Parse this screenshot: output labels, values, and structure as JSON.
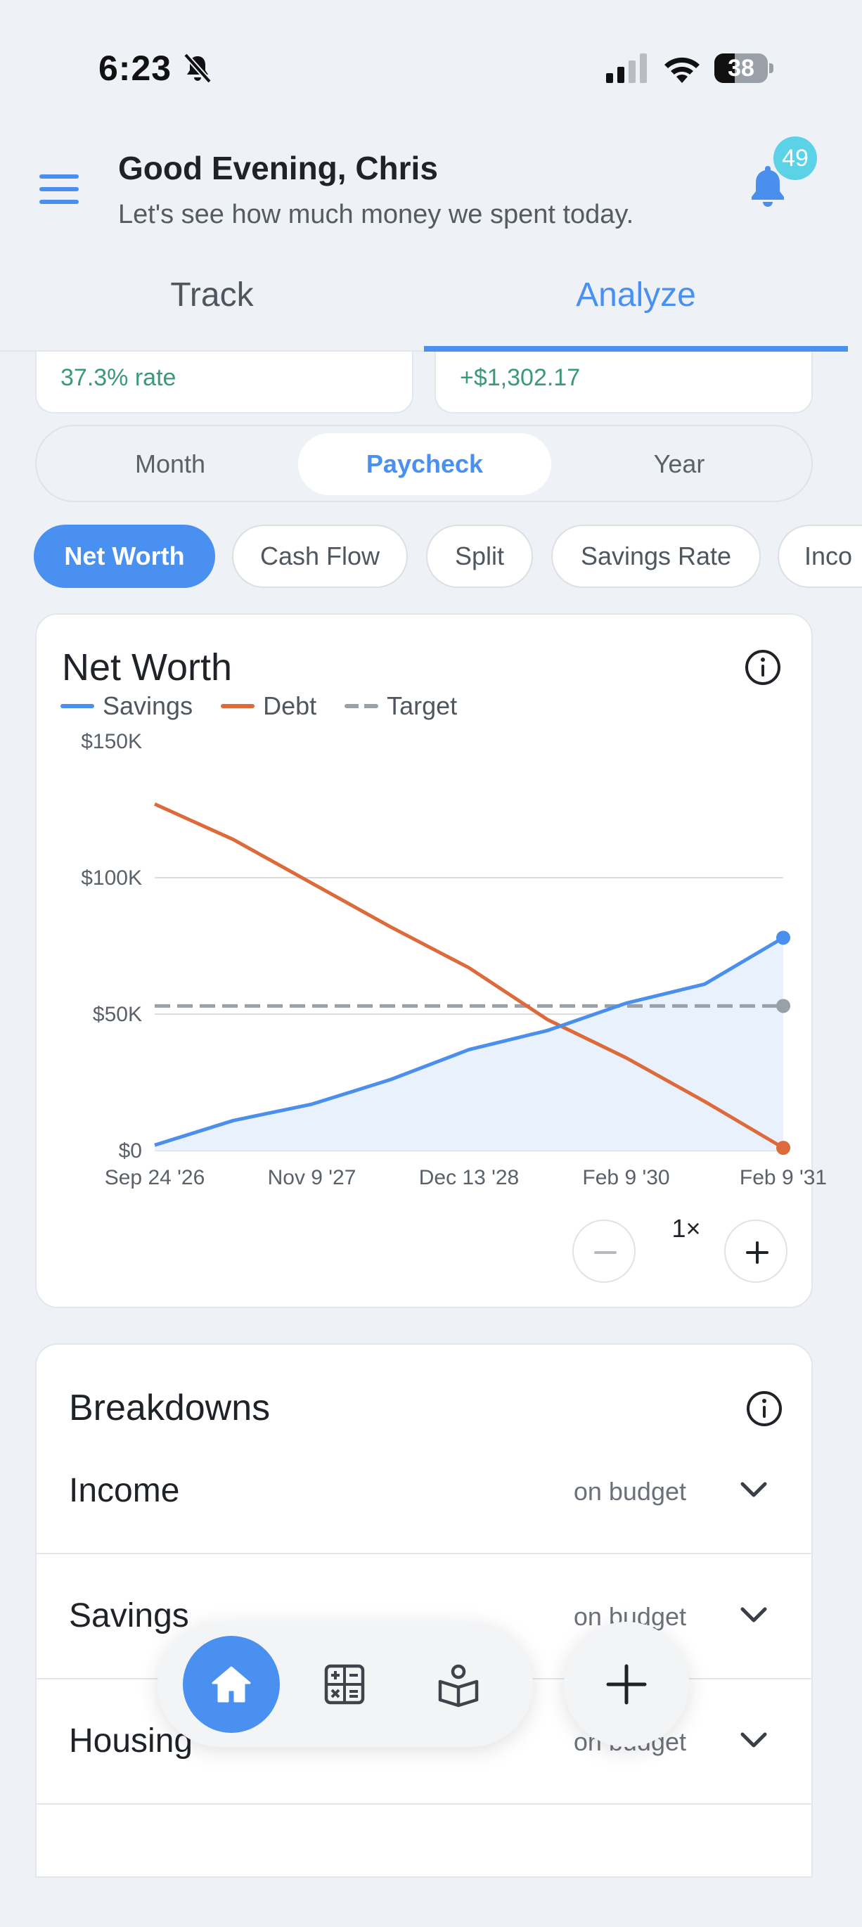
{
  "status_bar": {
    "time": "6:23",
    "battery": "38",
    "battery_level": 0.38
  },
  "header": {
    "greeting": "Good Evening, Chris",
    "subtitle": "Let's see how much money we spent today.",
    "notification_count": "49"
  },
  "tabs": [
    {
      "label": "Track",
      "active": false
    },
    {
      "label": "Analyze",
      "active": true
    }
  ],
  "summary_cards": [
    {
      "value": "37.3% rate"
    },
    {
      "value": "+$1,302.17"
    }
  ],
  "period_selector": {
    "options": [
      "Month",
      "Paycheck",
      "Year"
    ],
    "selected": "Paycheck"
  },
  "chips": [
    {
      "label": "Net Worth",
      "active": true
    },
    {
      "label": "Cash Flow",
      "active": false
    },
    {
      "label": "Split",
      "active": false
    },
    {
      "label": "Savings Rate",
      "active": false
    },
    {
      "label": "Inco",
      "active": false
    }
  ],
  "chart": {
    "title": "Net Worth",
    "zoom_level": "1×"
  },
  "chart_data": {
    "type": "line",
    "title": "Net Worth",
    "x_ticks": [
      "Sep 24 '26",
      "Nov 9 '27",
      "Dec 13 '28",
      "Feb 9 '30",
      "Feb 9 '31"
    ],
    "y_ticks": [
      "$0",
      "$50K",
      "$100K",
      "$150K"
    ],
    "ylim": [
      0,
      150000
    ],
    "grid": true,
    "legend_position": "top-left",
    "colors": {
      "Savings": "#4a8fee",
      "Debt": "#dd6a3b",
      "Target": "#9aa0a8"
    },
    "series": [
      {
        "name": "Savings",
        "x": [
          "Sep 24 '26",
          "Mar '27",
          "Nov 9 '27",
          "Jun '28",
          "Dec 13 '28",
          "Jul '29",
          "Feb 9 '30",
          "Aug '30",
          "Feb 9 '31"
        ],
        "values": [
          2000,
          11000,
          17000,
          26000,
          37000,
          44000,
          54000,
          61000,
          78000
        ]
      },
      {
        "name": "Debt",
        "x": [
          "Sep 24 '26",
          "Mar '27",
          "Nov 9 '27",
          "Jun '28",
          "Dec 13 '28",
          "Jul '29",
          "Feb 9 '30",
          "Aug '30",
          "Feb 9 '31"
        ],
        "values": [
          127000,
          114000,
          98000,
          82000,
          67000,
          48000,
          34000,
          18000,
          1000
        ]
      },
      {
        "name": "Target",
        "x": [
          "Sep 24 '26",
          "Feb 9 '31"
        ],
        "values": [
          53000,
          53000
        ]
      }
    ]
  },
  "breakdowns": {
    "title": "Breakdowns",
    "rows": [
      {
        "label": "Income",
        "status": "on budget"
      },
      {
        "label": "Savings",
        "status": "on budget"
      },
      {
        "label": "Housing",
        "status": "on budget"
      }
    ]
  },
  "icons": [
    "bell-off-icon",
    "signal-icon",
    "wifi-icon",
    "battery-icon",
    "menu-icon",
    "bell-icon",
    "info-icon",
    "minus-icon",
    "plus-icon",
    "chevron-down-icon",
    "home-icon",
    "calculator-icon",
    "book-icon"
  ]
}
